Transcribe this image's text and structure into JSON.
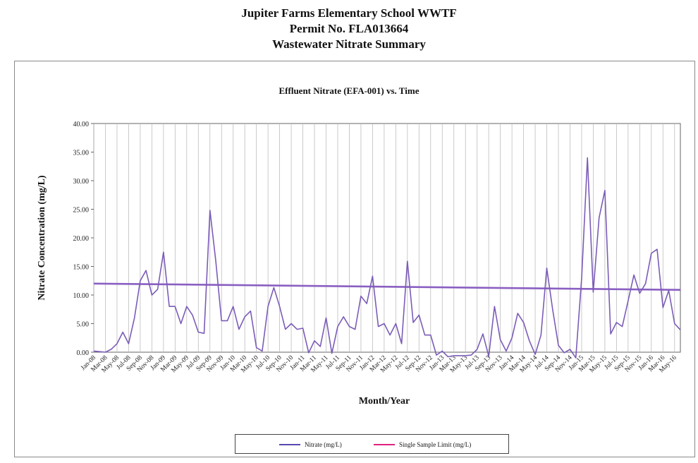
{
  "header": {
    "line1": "Jupiter Farms Elementary School WWTF",
    "line2": "Permit No. FLA013664",
    "line3": "Wastewater Nitrate Summary"
  },
  "chart_data": {
    "type": "line",
    "title": "Effluent Nitrate (EFA-001) vs. Time",
    "xlabel": "Month/Year",
    "ylabel": "Nitrate Concentration (mg/L)",
    "ylim": [
      0,
      40
    ],
    "yticks": [
      "0.00",
      "5.00",
      "10.00",
      "15.00",
      "20.00",
      "25.00",
      "30.00",
      "35.00",
      "40.00"
    ],
    "grid": true,
    "legend_position": "bottom",
    "x_tick_labels": [
      "Jan-08",
      "Mar-08",
      "May-08",
      "Jul-08",
      "Sep-08",
      "Nov-08",
      "Jan-09",
      "Mar-09",
      "May-09",
      "Jul-09",
      "Sep-09",
      "Nov-09",
      "Jan-10",
      "Mar-10",
      "May-10",
      "Jul-10",
      "Sep-10",
      "Nov-10",
      "Jan-11",
      "Mar-11",
      "May-11",
      "Jul-11",
      "Sep-11",
      "Nov-11",
      "Jan-12",
      "Mar-12",
      "May-12",
      "Jul-12",
      "Sep-12",
      "Nov-12",
      "Jan-13",
      "Mar-13",
      "May-13",
      "Jul-13",
      "Sep-13",
      "Nov-13",
      "Jan-14",
      "Mar-14",
      "May-14",
      "Jul-14",
      "Sep-14",
      "Nov-14",
      "Jan-15",
      "Mar-15",
      "May-15",
      "Jul-15",
      "Sep-15",
      "Nov-15",
      "Jan-16",
      "Mar-16",
      "May-16"
    ],
    "series": [
      {
        "name": "Nitrate (mg/L)",
        "color": "#7b5cb8",
        "values": [
          0.2,
          0.1,
          0.0,
          0.5,
          1.5,
          3.5,
          1.5,
          6.0,
          12.5,
          14.3,
          10.0,
          11.0,
          17.5,
          8.0,
          8.0,
          5.0,
          8.0,
          6.5,
          3.5,
          3.3,
          24.8,
          16.0,
          5.5,
          5.5,
          8.0,
          4.0,
          6.2,
          7.2,
          0.8,
          0.2,
          8.0,
          11.3,
          8.0,
          4.0,
          5.0,
          4.0,
          4.2,
          -0.1,
          2.0,
          1.0,
          6.0,
          -0.2,
          4.5,
          6.2,
          4.5,
          4.0,
          9.8,
          8.5,
          13.3,
          4.5,
          5.0,
          3.0,
          5.0,
          1.5,
          15.9,
          5.2,
          6.5,
          3.0,
          3.0,
          -0.5,
          0.2,
          -0.8,
          -0.6,
          -0.6,
          -0.6,
          -0.5,
          0.5,
          3.2,
          -0.7,
          8.0,
          2.2,
          0.2,
          2.5,
          6.8,
          5.2,
          2.0,
          -0.4,
          3.0,
          14.7,
          7.5,
          1.2,
          -0.1,
          0.5,
          -1.0,
          13.0,
          34.0,
          10.5,
          23.5,
          28.3,
          3.2,
          5.2,
          4.5,
          9.0,
          13.5,
          10.3,
          12.0,
          17.3,
          18.0,
          7.8,
          10.8,
          5.0,
          3.9
        ]
      },
      {
        "name": "Single Sample Limit (mg/L)",
        "color": "#e0217e",
        "trend_color": "#8a5fc2",
        "values_start_end": [
          12.0,
          10.9
        ]
      }
    ]
  }
}
